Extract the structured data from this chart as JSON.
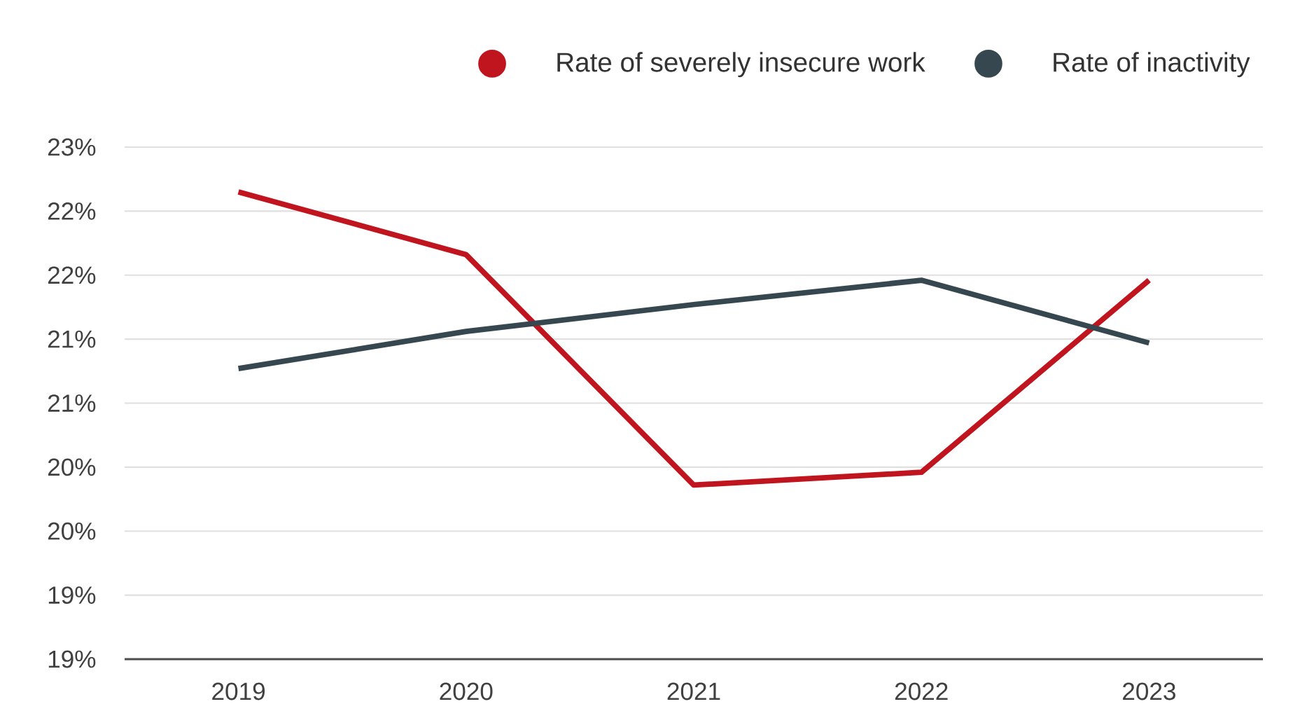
{
  "chart_data": {
    "type": "line",
    "categories": [
      "2019",
      "2020",
      "2021",
      "2022",
      "2023"
    ],
    "series": [
      {
        "name": "Rate of severely insecure work",
        "color": "#c0141e",
        "values": [
          22.65,
          22.16,
          20.36,
          20.46,
          21.96
        ]
      },
      {
        "name": "Rate of inactivity",
        "color": "#37474f",
        "values": [
          21.27,
          21.56,
          21.77,
          21.96,
          21.47
        ]
      }
    ],
    "ylim": [
      19,
      23
    ],
    "yticks": [
      {
        "value": 19,
        "label": "19%"
      },
      {
        "value": 19.5,
        "label": "19%"
      },
      {
        "value": 20,
        "label": "20%"
      },
      {
        "value": 20.5,
        "label": "20%"
      },
      {
        "value": 21,
        "label": "21%"
      },
      {
        "value": 21.5,
        "label": "21%"
      },
      {
        "value": 22,
        "label": "22%"
      },
      {
        "value": 22.5,
        "label": "22%"
      },
      {
        "value": 23,
        "label": "23%"
      }
    ],
    "grid": "y",
    "legend": "top right",
    "marker": "none",
    "line_style": "solid"
  }
}
